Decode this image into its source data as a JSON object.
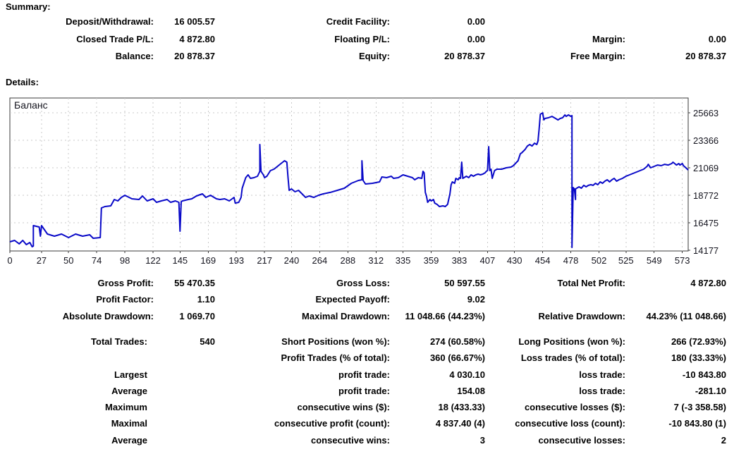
{
  "page": {
    "summary_heading": "Summary:",
    "details_heading": "Details:"
  },
  "summary_rows": [
    [
      "Deposit/Withdrawal:",
      "16 005.57",
      "Credit Facility:",
      "0.00",
      "",
      ""
    ],
    [
      "Closed Trade P/L:",
      "4 872.80",
      "Floating P/L:",
      "0.00",
      "Margin:",
      "0.00"
    ],
    [
      "Balance:",
      "20 878.37",
      "Equity:",
      "20 878.37",
      "Free Margin:",
      "20 878.37"
    ]
  ],
  "details_rows_top": [
    [
      "Gross Profit:",
      "55 470.35",
      "Gross Loss:",
      "50 597.55",
      "Total Net Profit:",
      "4 872.80"
    ],
    [
      "Profit Factor:",
      "1.10",
      "Expected Payoff:",
      "9.02",
      "",
      ""
    ],
    [
      "Absolute Drawdown:",
      "1 069.70",
      "Maximal Drawdown:",
      "11 048.66 (44.23%)",
      "Relative Drawdown:",
      "44.23% (11 048.66)"
    ]
  ],
  "details_rows_bottom": [
    [
      "Total Trades:",
      "540",
      "Short Positions (won %):",
      "274 (60.58%)",
      "Long Positions (won %):",
      "266 (72.93%)"
    ],
    [
      "",
      "",
      "Profit Trades (% of total):",
      "360 (66.67%)",
      "Loss trades (% of total):",
      "180 (33.33%)"
    ],
    [
      "Largest",
      "",
      "profit trade:",
      "4 030.10",
      "loss trade:",
      "-10 843.80"
    ],
    [
      "Average",
      "",
      "profit trade:",
      "154.08",
      "loss trade:",
      "-281.10"
    ],
    [
      "Maximum",
      "",
      "consecutive wins ($):",
      "18 (433.33)",
      "consecutive losses ($):",
      "7 (-3 358.58)"
    ],
    [
      "Maximal",
      "",
      "consecutive profit (count):",
      "4 837.40 (4)",
      "consecutive loss (count):",
      "-10 843.80 (1)"
    ],
    [
      "Average",
      "",
      "consecutive wins:",
      "3",
      "consecutive losses:",
      "2"
    ]
  ],
  "colors": {
    "line": "#0a0ac8",
    "grid": "#c9c9c9",
    "frame": "#3a3a3a",
    "tick_text": "#14141e",
    "chart_label": "#7a7a7a",
    "text": "#000000",
    "background": "#ffffff"
  },
  "chart_data": {
    "type": "line",
    "title": "Баланс",
    "xlabel": "",
    "ylabel": "",
    "grid": true,
    "legend_position": "top-left-inside",
    "x_ticks": [
      0,
      27,
      50,
      74,
      98,
      122,
      145,
      169,
      193,
      217,
      240,
      264,
      288,
      312,
      335,
      359,
      383,
      407,
      430,
      454,
      478,
      502,
      525,
      549,
      573
    ],
    "y_ticks": [
      14177,
      16475,
      18772,
      21069,
      23366,
      25663
    ],
    "x_range": [
      0,
      578
    ],
    "y_range": [
      14118,
      26900
    ],
    "series": [
      {
        "name": "Баланс",
        "color": "#0a0ac8",
        "points": [
          [
            0,
            14884
          ],
          [
            4,
            15000
          ],
          [
            8,
            14710
          ],
          [
            11,
            15000
          ],
          [
            14,
            14650
          ],
          [
            17,
            14825
          ],
          [
            19,
            14470
          ],
          [
            20,
            14530
          ],
          [
            20,
            16240
          ],
          [
            25,
            16120
          ],
          [
            26,
            15355
          ],
          [
            27,
            16240
          ],
          [
            32,
            15530
          ],
          [
            38,
            15355
          ],
          [
            44,
            15530
          ],
          [
            50,
            15240
          ],
          [
            56,
            15530
          ],
          [
            62,
            15355
          ],
          [
            68,
            15470
          ],
          [
            71,
            15180
          ],
          [
            77,
            15240
          ],
          [
            78,
            17710
          ],
          [
            81,
            17830
          ],
          [
            86,
            17890
          ],
          [
            89,
            18420
          ],
          [
            92,
            18300
          ],
          [
            95,
            18595
          ],
          [
            98,
            18770
          ],
          [
            104,
            18475
          ],
          [
            110,
            18420
          ],
          [
            113,
            18710
          ],
          [
            117,
            18300
          ],
          [
            122,
            18475
          ],
          [
            125,
            18180
          ],
          [
            129,
            18300
          ],
          [
            134,
            18420
          ],
          [
            137,
            18180
          ],
          [
            141,
            18300
          ],
          [
            144,
            18180
          ],
          [
            145,
            15770
          ],
          [
            146,
            18240
          ],
          [
            147,
            18300
          ],
          [
            152,
            18420
          ],
          [
            155,
            18475
          ],
          [
            159,
            18710
          ],
          [
            164,
            18890
          ],
          [
            167,
            18595
          ],
          [
            171,
            18770
          ],
          [
            176,
            18475
          ],
          [
            179,
            18420
          ],
          [
            183,
            18475
          ],
          [
            187,
            18300
          ],
          [
            191,
            18595
          ],
          [
            192,
            18120
          ],
          [
            195,
            18180
          ],
          [
            197,
            18595
          ],
          [
            198,
            19360
          ],
          [
            201,
            20245
          ],
          [
            203,
            20480
          ],
          [
            205,
            20185
          ],
          [
            208,
            20245
          ],
          [
            211,
            20360
          ],
          [
            213,
            20775
          ],
          [
            213,
            23010
          ],
          [
            214,
            20775
          ],
          [
            216,
            20480
          ],
          [
            217,
            20245
          ],
          [
            219,
            20360
          ],
          [
            222,
            20835
          ],
          [
            225,
            20950
          ],
          [
            228,
            21185
          ],
          [
            231,
            21420
          ],
          [
            234,
            21660
          ],
          [
            236,
            21540
          ],
          [
            237,
            20245
          ],
          [
            238,
            19185
          ],
          [
            240,
            19300
          ],
          [
            243,
            19065
          ],
          [
            246,
            19185
          ],
          [
            249,
            18890
          ],
          [
            252,
            18595
          ],
          [
            255,
            18710
          ],
          [
            259,
            18595
          ],
          [
            263,
            18770
          ],
          [
            267,
            18890
          ],
          [
            273,
            19010
          ],
          [
            279,
            19185
          ],
          [
            285,
            19360
          ],
          [
            291,
            19775
          ],
          [
            297,
            20010
          ],
          [
            300,
            20070
          ],
          [
            300,
            21660
          ],
          [
            301,
            20010
          ],
          [
            303,
            19715
          ],
          [
            309,
            19775
          ],
          [
            315,
            19890
          ],
          [
            317,
            20300
          ],
          [
            321,
            20245
          ],
          [
            325,
            20360
          ],
          [
            327,
            20185
          ],
          [
            331,
            20245
          ],
          [
            335,
            20480
          ],
          [
            339,
            20360
          ],
          [
            343,
            20245
          ],
          [
            345,
            20070
          ],
          [
            348,
            20245
          ],
          [
            351,
            20185
          ],
          [
            352,
            20775
          ],
          [
            353,
            20655
          ],
          [
            354,
            19010
          ],
          [
            355,
            18710
          ],
          [
            356,
            18180
          ],
          [
            358,
            18420
          ],
          [
            359,
            18300
          ],
          [
            361,
            18420
          ],
          [
            362,
            18120
          ],
          [
            364,
            18010
          ],
          [
            366,
            17830
          ],
          [
            369,
            17890
          ],
          [
            371,
            17830
          ],
          [
            373,
            18010
          ],
          [
            375,
            18890
          ],
          [
            376,
            19655
          ],
          [
            377,
            19890
          ],
          [
            379,
            19775
          ],
          [
            380,
            20185
          ],
          [
            382,
            20070
          ],
          [
            383,
            20245
          ],
          [
            384,
            20185
          ],
          [
            385,
            21540
          ],
          [
            386,
            20185
          ],
          [
            387,
            20245
          ],
          [
            389,
            20360
          ],
          [
            391,
            20245
          ],
          [
            393,
            20480
          ],
          [
            395,
            20360
          ],
          [
            397,
            20480
          ],
          [
            399,
            20540
          ],
          [
            401,
            20480
          ],
          [
            403,
            20540
          ],
          [
            405,
            20655
          ],
          [
            406,
            20775
          ],
          [
            407,
            20835
          ],
          [
            408,
            22835
          ],
          [
            409,
            20835
          ],
          [
            410,
            20950
          ],
          [
            411,
            20185
          ],
          [
            413,
            20835
          ],
          [
            415,
            20950
          ],
          [
            419,
            20950
          ],
          [
            423,
            21070
          ],
          [
            427,
            21125
          ],
          [
            429,
            21245
          ],
          [
            433,
            21660
          ],
          [
            435,
            22245
          ],
          [
            436,
            22305
          ],
          [
            439,
            22600
          ],
          [
            441,
            22890
          ],
          [
            443,
            23010
          ],
          [
            445,
            22890
          ],
          [
            447,
            23125
          ],
          [
            449,
            23010
          ],
          [
            450,
            23305
          ],
          [
            451,
            24305
          ],
          [
            452,
            25540
          ],
          [
            454,
            25660
          ],
          [
            455,
            25070
          ],
          [
            456,
            25190
          ],
          [
            459,
            25250
          ],
          [
            462,
            25365
          ],
          [
            465,
            25190
          ],
          [
            467,
            25070
          ],
          [
            469,
            25190
          ],
          [
            471,
            25250
          ],
          [
            473,
            25485
          ],
          [
            474,
            25365
          ],
          [
            476,
            25485
          ],
          [
            478,
            25365
          ],
          [
            479,
            25425
          ],
          [
            479,
            14412
          ],
          [
            480,
            19420
          ],
          [
            481,
            19300
          ],
          [
            482,
            18420
          ],
          [
            482,
            19300
          ],
          [
            485,
            19480
          ],
          [
            487,
            19360
          ],
          [
            489,
            19600
          ],
          [
            491,
            19480
          ],
          [
            493,
            19600
          ],
          [
            495,
            19655
          ],
          [
            497,
            19600
          ],
          [
            499,
            19775
          ],
          [
            501,
            19655
          ],
          [
            503,
            19890
          ],
          [
            505,
            19775
          ],
          [
            507,
            19950
          ],
          [
            509,
            20070
          ],
          [
            511,
            19890
          ],
          [
            513,
            20070
          ],
          [
            515,
            20185
          ],
          [
            517,
            19950
          ],
          [
            519,
            20070
          ],
          [
            522,
            20185
          ],
          [
            525,
            20360
          ],
          [
            528,
            20480
          ],
          [
            531,
            20600
          ],
          [
            534,
            20715
          ],
          [
            537,
            20835
          ],
          [
            540,
            20950
          ],
          [
            543,
            21185
          ],
          [
            544,
            21360
          ],
          [
            546,
            21070
          ],
          [
            549,
            21185
          ],
          [
            552,
            21300
          ],
          [
            555,
            21245
          ],
          [
            558,
            21360
          ],
          [
            561,
            21300
          ],
          [
            564,
            21420
          ],
          [
            565,
            21540
          ],
          [
            568,
            21300
          ],
          [
            570,
            21420
          ],
          [
            571,
            21300
          ],
          [
            573,
            21420
          ],
          [
            574,
            21245
          ],
          [
            576,
            21070
          ],
          [
            578,
            20878
          ]
        ]
      }
    ]
  }
}
